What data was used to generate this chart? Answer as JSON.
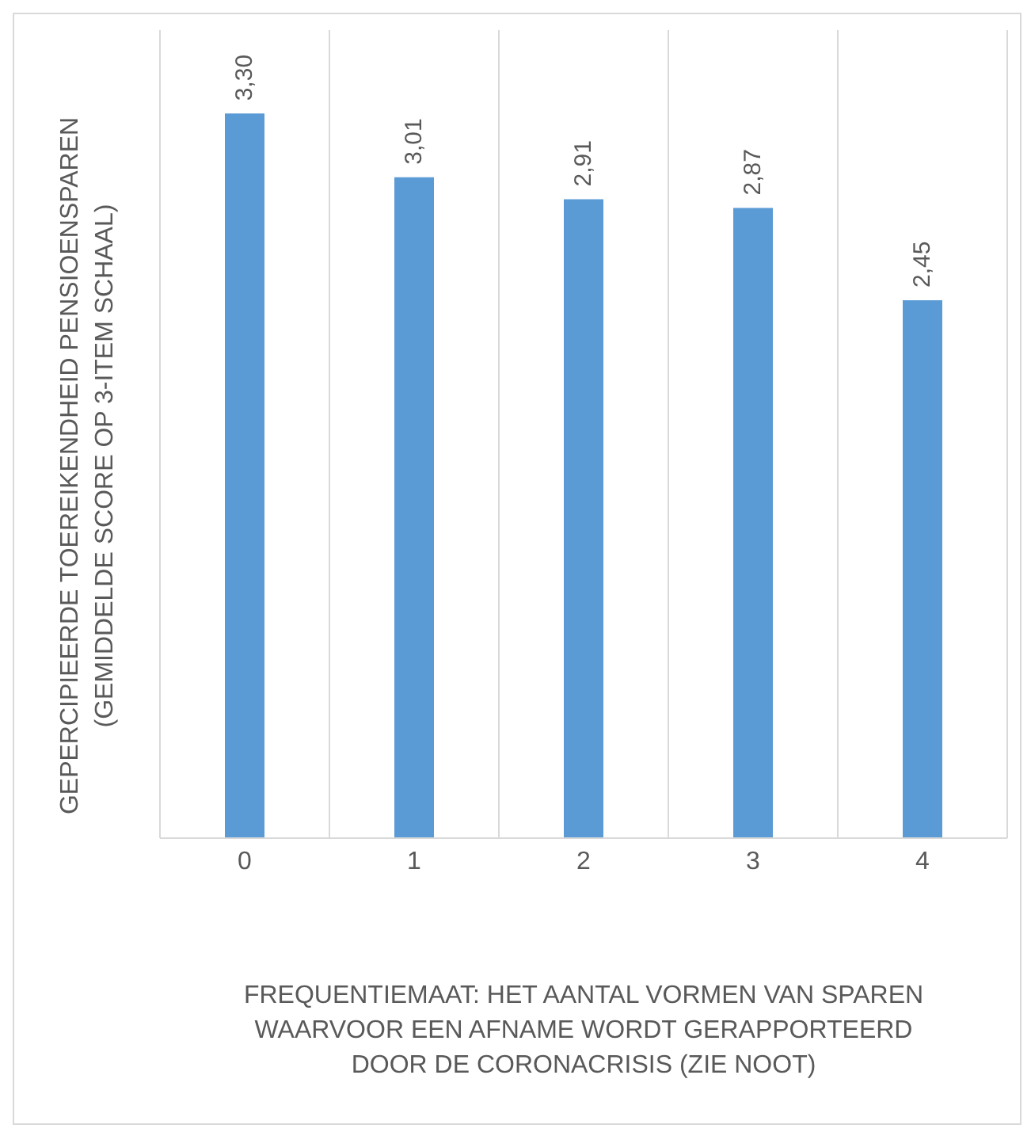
{
  "chart_data": {
    "type": "bar",
    "categories": [
      "0",
      "1",
      "2",
      "3",
      "4"
    ],
    "values": [
      3.3,
      3.01,
      2.91,
      2.87,
      2.45
    ],
    "color": "#5b9bd5",
    "value_labels": [
      "3,30",
      "3,01",
      "2,91",
      "2,87",
      "2,45"
    ],
    "ylim": [
      0,
      3.68
    ],
    "tick_labels": "x",
    "grid": "x",
    "xlabel": "FREQUENTIEMAAT: HET AANTAL VORMEN VAN SPAREN\nWAARVOOR EEN AFNAME WORDT GERAPPORTEERD\nDOOR DE CORONACRISIS (ZIE NOOT)",
    "ylabel": "GEPERCIPIEERDE TOEREIKENDHEID PENSIOENSPAREN\n(GEMIDDELDE SCORE OP 3-ITEM SCHAAL)"
  }
}
